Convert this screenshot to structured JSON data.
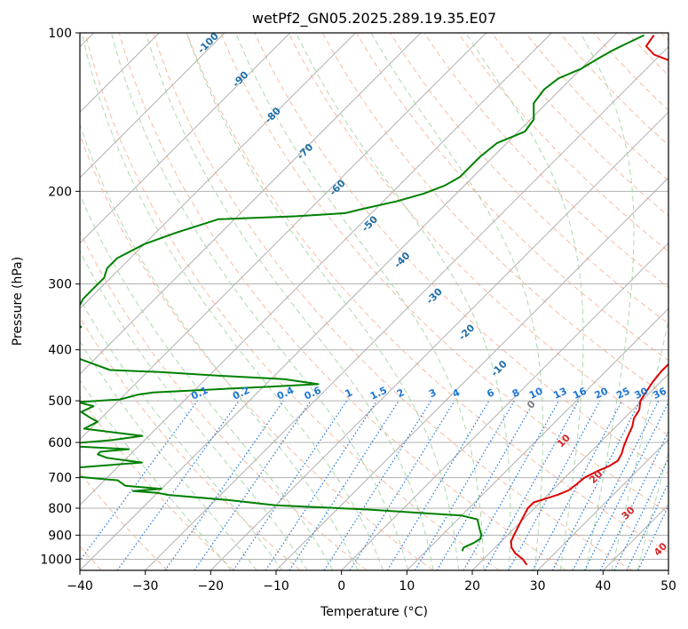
{
  "chart_data": {
    "type": "line",
    "title": "wetPf2_GN05.2025.289.19.35.E07",
    "xlabel": "Temperature (°C)",
    "ylabel": "Pressure (hPa)",
    "xlim": [
      -40,
      50
    ],
    "ylim": [
      1050,
      100
    ],
    "y_scale": "log",
    "grid": true,
    "x_ticks": [
      "−40",
      "−30",
      "−20",
      "−10",
      "0",
      "10",
      "20",
      "30",
      "40",
      "50"
    ],
    "y_ticks": [
      "100",
      "200",
      "300",
      "400",
      "500",
      "600",
      "700",
      "800",
      "900",
      "1000"
    ],
    "skew": 45,
    "series": [
      {
        "color": "#e00000",
        "style": "solid",
        "points": [
          [
            27.5,
            1025
          ],
          [
            26,
            1000
          ],
          [
            24,
            975
          ],
          [
            22.5,
            950
          ],
          [
            21.5,
            925
          ],
          [
            21,
            900
          ],
          [
            20.5,
            875
          ],
          [
            20,
            850
          ],
          [
            19.5,
            825
          ],
          [
            19,
            800
          ],
          [
            19,
            780
          ],
          [
            20,
            770
          ],
          [
            21.5,
            755
          ],
          [
            22.5,
            740
          ],
          [
            22.8,
            720
          ],
          [
            23,
            700
          ],
          [
            24,
            680
          ],
          [
            25,
            665
          ],
          [
            25.5,
            650
          ],
          [
            25,
            630
          ],
          [
            24.2,
            610
          ],
          [
            23.5,
            590
          ],
          [
            23,
            575
          ],
          [
            22.5,
            560
          ],
          [
            21.5,
            540
          ],
          [
            21,
            520
          ],
          [
            19.8,
            500
          ],
          [
            19.3,
            480
          ],
          [
            18.8,
            460
          ],
          [
            18.5,
            440
          ],
          [
            18.5,
            420
          ],
          [
            18.5,
            400
          ],
          [
            18.2,
            390
          ],
          [
            17,
            375
          ],
          [
            15,
            360
          ],
          [
            12.5,
            345
          ],
          [
            11,
            330
          ],
          [
            9.5,
            318
          ],
          [
            8,
            305
          ],
          [
            6.5,
            290
          ],
          [
            5.5,
            278
          ],
          [
            4.5,
            266
          ],
          [
            3,
            252
          ],
          [
            0,
            233
          ],
          [
            -3,
            217
          ],
          [
            -5,
            205
          ],
          [
            -6.5,
            195
          ],
          [
            -8,
            185
          ],
          [
            -10,
            175
          ],
          [
            -12,
            165
          ],
          [
            -14,
            155
          ],
          [
            -16,
            145
          ],
          [
            -18.5,
            136
          ],
          [
            -20,
            130
          ],
          [
            -22,
            124
          ],
          [
            -24,
            119
          ],
          [
            -26.5,
            114
          ],
          [
            -31,
            110
          ],
          [
            -33.5,
            106
          ],
          [
            -34,
            101
          ]
        ]
      },
      {
        "color": "#008000",
        "style": "solid",
        "points": [
          [
            15.5,
            965
          ],
          [
            15.2,
            950
          ],
          [
            16,
            932
          ],
          [
            16.4,
            915
          ],
          [
            16,
            900
          ],
          [
            15,
            880
          ],
          [
            14,
            860
          ],
          [
            13,
            840
          ],
          [
            10,
            826
          ],
          [
            -5,
            805
          ],
          [
            -20,
            790
          ],
          [
            -28,
            772
          ],
          [
            -38,
            755
          ],
          [
            -40,
            748
          ],
          [
            -44,
            742
          ],
          [
            -40,
            735
          ],
          [
            -46,
            725
          ],
          [
            -48,
            708
          ],
          [
            -58,
            692
          ],
          [
            -67,
            682
          ],
          [
            -55,
            668
          ],
          [
            -47,
            655
          ],
          [
            -53,
            642
          ],
          [
            -55,
            632
          ],
          [
            -55,
            625
          ],
          [
            -51,
            618
          ],
          [
            -60,
            610
          ],
          [
            -61,
            603
          ],
          [
            -55,
            594
          ],
          [
            -51,
            583
          ],
          [
            -56,
            574
          ],
          [
            -61,
            565
          ],
          [
            -60,
            548
          ],
          [
            -62,
            537
          ],
          [
            -64,
            525
          ],
          [
            -63,
            512
          ],
          [
            -66,
            503
          ],
          [
            -60,
            497
          ],
          [
            -58,
            487
          ],
          [
            -56,
            482
          ],
          [
            -39,
            470
          ],
          [
            -32,
            465
          ],
          [
            -38,
            455
          ],
          [
            -50,
            447
          ],
          [
            -58,
            441
          ],
          [
            -60,
            440
          ],
          [
            -66,
            437
          ],
          [
            -75,
            408
          ],
          [
            -78,
            404
          ],
          [
            -78,
            390
          ],
          [
            -78,
            375
          ],
          [
            -77,
            362
          ],
          [
            -80,
            350
          ],
          [
            -80,
            340
          ],
          [
            -81,
            320
          ],
          [
            -81,
            305
          ],
          [
            -81,
            292
          ],
          [
            -82,
            280
          ],
          [
            -82,
            268
          ],
          [
            -80,
            252
          ],
          [
            -77,
            240
          ],
          [
            -72.5,
            226
          ],
          [
            -61,
            223
          ],
          [
            -54,
            220
          ],
          [
            -52,
            216
          ],
          [
            -48,
            209
          ],
          [
            -45,
            202
          ],
          [
            -43,
            195
          ],
          [
            -42,
            188
          ],
          [
            -42,
            180
          ],
          [
            -42,
            172
          ],
          [
            -41.5,
            162
          ],
          [
            -39,
            154
          ],
          [
            -39.5,
            146
          ],
          [
            -42,
            136
          ],
          [
            -42.5,
            128
          ],
          [
            -42,
            122
          ],
          [
            -40,
            117
          ],
          [
            -39,
            112
          ],
          [
            -38,
            108
          ],
          [
            -37,
            105
          ],
          [
            -35.5,
            101
          ]
        ]
      }
    ],
    "dry_adiabat_labels": [
      "-100",
      "-90",
      "-80",
      "-70",
      "-60",
      "-50",
      "-40",
      "-30",
      "-20",
      "-10",
      "0",
      "10",
      "20",
      "30",
      "40"
    ],
    "mixing_ratio_labels": [
      "0.1",
      "0.2",
      "0.4",
      "0.6",
      "1",
      "1.5",
      "2",
      "3",
      "4",
      "6",
      "8",
      "10",
      "13",
      "16",
      "20",
      "25",
      "30",
      "36"
    ],
    "colors": {
      "temperature": "#e00000",
      "dewpoint": "#008000",
      "dry_adiabat": "#f4a582",
      "moist_adiabat": "#9fd19f",
      "mixing_ratio": "#1f77d4",
      "dry_label": "#1f6fa8",
      "warm_label": "#d62728",
      "zero_label": "#808080",
      "grid": "#b0b0b0"
    }
  }
}
